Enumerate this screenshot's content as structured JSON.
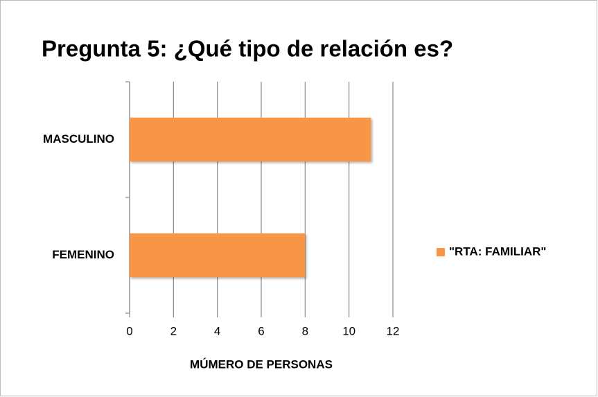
{
  "chart_data": {
    "type": "bar",
    "orientation": "horizontal",
    "title": "Pregunta 5: ¿Qué tipo de relación es?",
    "categories": [
      "MASCULINO",
      "FEMENINO"
    ],
    "series": [
      {
        "name": "\"RTA: FAMILIAR\"",
        "color": "#f79646",
        "values": [
          11,
          8
        ]
      }
    ],
    "xlabel": "MÚMERO DE PERSONAS",
    "xlim": [
      0,
      12
    ],
    "xticks": [
      0,
      2,
      4,
      6,
      8,
      10,
      12
    ],
    "grid": true,
    "legend": "right"
  }
}
